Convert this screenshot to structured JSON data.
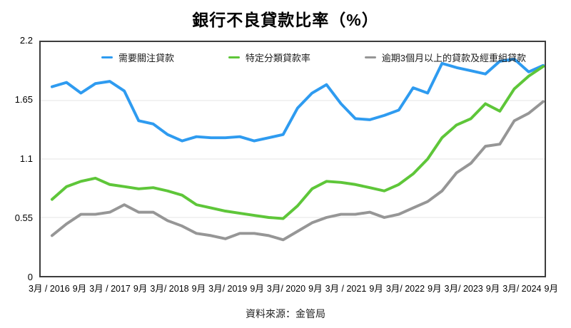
{
  "title": "銀行不良貸款比率（%）",
  "source": "資料來源：金管局",
  "chart_data": {
    "type": "line",
    "title": "銀行不良貸款比率（%）",
    "xlabel": "",
    "ylabel": "",
    "ylim": [
      0,
      2.2
    ],
    "grid": "horizontal",
    "legend_position": "top-inside",
    "frame_color": "#3d3d3d",
    "gridline_color": "#e4e4e4",
    "yticks": [
      {
        "value": 0,
        "label": "0"
      },
      {
        "value": 0.55,
        "label": "0.55"
      },
      {
        "value": 1.1,
        "label": "1.1"
      },
      {
        "value": 1.65,
        "label": "1.65"
      },
      {
        "value": 2.2,
        "label": "2.2"
      }
    ],
    "x_frequency": "quarterly",
    "x_tick_labels": [
      "3月 / 2016",
      "9月",
      "3月 / 2017",
      "9月",
      "3月/ 2018",
      "9月",
      "3月/ 2019",
      "9月",
      "3月/ 2020",
      "9月",
      "3月 / 2021",
      "9月",
      "3月/ 2022",
      "9月",
      "3月/ 2023",
      "9月",
      "3月/ 2024",
      "9月"
    ],
    "x_points": [
      "2016 Q1",
      "2016 Q2",
      "2016 Q3",
      "2016 Q4",
      "2017 Q1",
      "2017 Q2",
      "2017 Q3",
      "2017 Q4",
      "2018 Q1",
      "2018 Q2",
      "2018 Q3",
      "2018 Q4",
      "2019 Q1",
      "2019 Q2",
      "2019 Q3",
      "2019 Q4",
      "2020 Q1",
      "2020 Q2",
      "2020 Q3",
      "2020 Q4",
      "2021 Q1",
      "2021 Q2",
      "2021 Q3",
      "2021 Q4",
      "2022 Q1",
      "2022 Q2",
      "2022 Q3",
      "2022 Q4",
      "2023 Q1",
      "2023 Q2",
      "2023 Q3",
      "2023 Q4",
      "2024 Q1",
      "2024 Q2",
      "2024 Q3"
    ],
    "series": [
      {
        "name": "需要關注貸款",
        "color": "#2e9bf0",
        "values": [
          1.78,
          1.82,
          1.72,
          1.81,
          1.83,
          1.74,
          1.46,
          1.43,
          1.33,
          1.27,
          1.31,
          1.3,
          1.3,
          1.31,
          1.27,
          1.3,
          1.33,
          1.58,
          1.72,
          1.8,
          1.62,
          1.48,
          1.47,
          1.51,
          1.56,
          1.77,
          1.72,
          2.0,
          1.96,
          1.93,
          1.9,
          2.02,
          2.04,
          1.92,
          1.98
        ]
      },
      {
        "name": "特定分類貸款率",
        "color": "#5ec639",
        "values": [
          0.72,
          0.84,
          0.89,
          0.92,
          0.86,
          0.84,
          0.82,
          0.83,
          0.8,
          0.76,
          0.67,
          0.64,
          0.61,
          0.59,
          0.57,
          0.55,
          0.54,
          0.66,
          0.82,
          0.89,
          0.88,
          0.86,
          0.83,
          0.8,
          0.86,
          0.96,
          1.1,
          1.3,
          1.42,
          1.48,
          1.62,
          1.55,
          1.76,
          1.88,
          1.97
        ]
      },
      {
        "name": "逾期3個月以上的貸款及經重組貸款",
        "color": "#969696",
        "values": [
          0.38,
          0.49,
          0.58,
          0.58,
          0.6,
          0.67,
          0.6,
          0.6,
          0.52,
          0.47,
          0.4,
          0.38,
          0.35,
          0.4,
          0.4,
          0.38,
          0.34,
          0.42,
          0.5,
          0.55,
          0.58,
          0.58,
          0.6,
          0.55,
          0.58,
          0.64,
          0.7,
          0.8,
          0.97,
          1.06,
          1.22,
          1.24,
          1.46,
          1.53,
          1.64
        ]
      }
    ]
  }
}
